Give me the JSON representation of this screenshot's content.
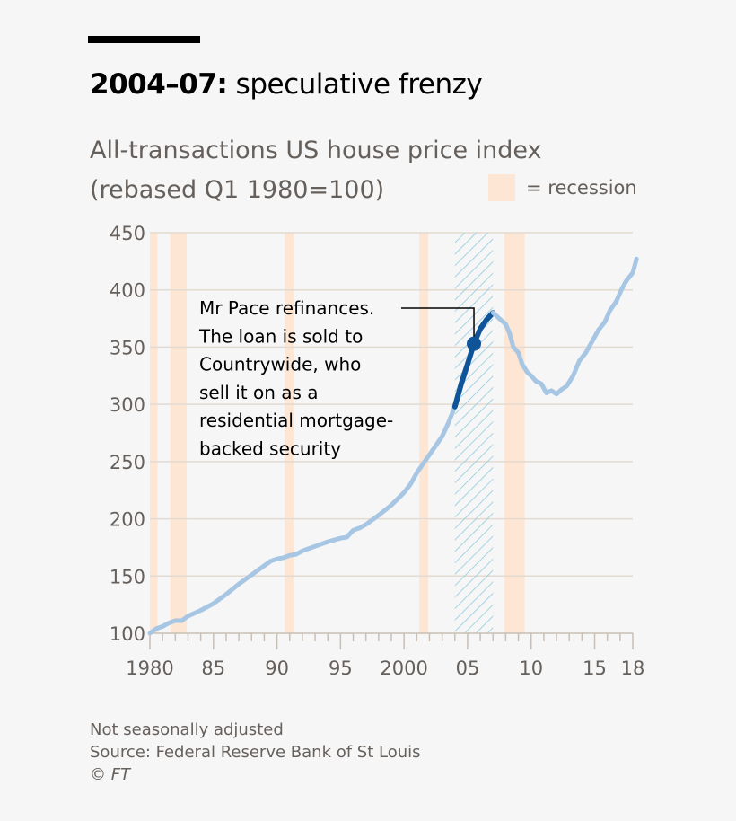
{
  "header": {
    "title_bold": "2004–07:",
    "title_rest": " speculative frenzy",
    "subtitle_line1": "All-transactions US house price index",
    "subtitle_line2": "(rebased Q1 1980=100)",
    "legend_label": "= recession"
  },
  "footer": {
    "note": "Not seasonally adjusted",
    "source": "Source: Federal Reserve Bank of St Louis",
    "credit": "© FT"
  },
  "colors": {
    "background": "#f6f6f6",
    "grid": "#e3dad1",
    "recession": "#fde6d3",
    "series_light": "#a7c6e4",
    "series_highlight": "#0f5499",
    "hatch": "#8fcbe0"
  },
  "chart_data": {
    "type": "line",
    "ylim": [
      100,
      450
    ],
    "xlim": [
      1980,
      2018
    ],
    "yticks": [
      100,
      150,
      200,
      250,
      300,
      350,
      400,
      450
    ],
    "xtick_labels": [
      {
        "x": 1980,
        "label": "1980"
      },
      {
        "x": 1985,
        "label": "85"
      },
      {
        "x": 1990,
        "label": "90"
      },
      {
        "x": 1995,
        "label": "95"
      },
      {
        "x": 2000,
        "label": "2000"
      },
      {
        "x": 2005,
        "label": "05"
      },
      {
        "x": 2010,
        "label": "10"
      },
      {
        "x": 2015,
        "label": "15"
      },
      {
        "x": 2018,
        "label": "18"
      }
    ],
    "grid": true,
    "recessions": [
      [
        1980.0,
        1980.6
      ],
      [
        1981.6,
        1982.9
      ],
      [
        1990.6,
        1991.3
      ],
      [
        2001.2,
        2001.9
      ],
      [
        2007.9,
        2009.5
      ]
    ],
    "highlight_period": [
      2004.0,
      2007.0
    ],
    "series": [
      {
        "x": [
          1980,
          1980.5,
          1981,
          1981.5,
          1982,
          1982.5,
          1983,
          1984,
          1985,
          1986,
          1987,
          1988,
          1989,
          1989.5,
          1990,
          1990.5,
          1991,
          1991.5,
          1992,
          1992.5,
          1993,
          1994,
          1995,
          1995.5,
          1996,
          1996.5,
          1997,
          1998,
          1999,
          2000,
          2000.5,
          2001,
          2002,
          2003,
          2003.5,
          2004
        ],
        "y": [
          100,
          104,
          106,
          109,
          111,
          111,
          115,
          120,
          126,
          134,
          143,
          151,
          159,
          163,
          165,
          166,
          168,
          169,
          172,
          174,
          176,
          180,
          183,
          184,
          190,
          192,
          195,
          203,
          212,
          223,
          230,
          240,
          256,
          272,
          284,
          298
        ]
      },
      {
        "highlight": true,
        "x": [
          2004,
          2004.5,
          2005,
          2005.5,
          2006,
          2006.5,
          2007
        ],
        "y": [
          298,
          318,
          335,
          353,
          366,
          374,
          380
        ]
      },
      {
        "x": [
          2007,
          2007.5,
          2008,
          2008.3,
          2008.6,
          2009,
          2009.3,
          2009.7,
          2010,
          2010.4,
          2010.8,
          2011.2,
          2011.6,
          2012,
          2012.4,
          2012.8,
          2013.3,
          2013.8,
          2014.3,
          2014.8,
          2015.3,
          2015.8,
          2016.2,
          2016.7,
          2017.1,
          2017.5,
          2018,
          2018.3
        ],
        "y": [
          380,
          375,
          370,
          362,
          350,
          345,
          335,
          328,
          325,
          320,
          318,
          310,
          312,
          309,
          313,
          316,
          325,
          338,
          345,
          355,
          365,
          372,
          382,
          390,
          400,
          408,
          415,
          427
        ]
      }
    ],
    "annotation": {
      "x": 2005.5,
      "y": 353,
      "lines": [
        "Mr Pace refinances.",
        "The loan is sold to",
        "Countrywide, who",
        "sell it on as a",
        "residential mortgage-",
        "backed security"
      ]
    }
  }
}
